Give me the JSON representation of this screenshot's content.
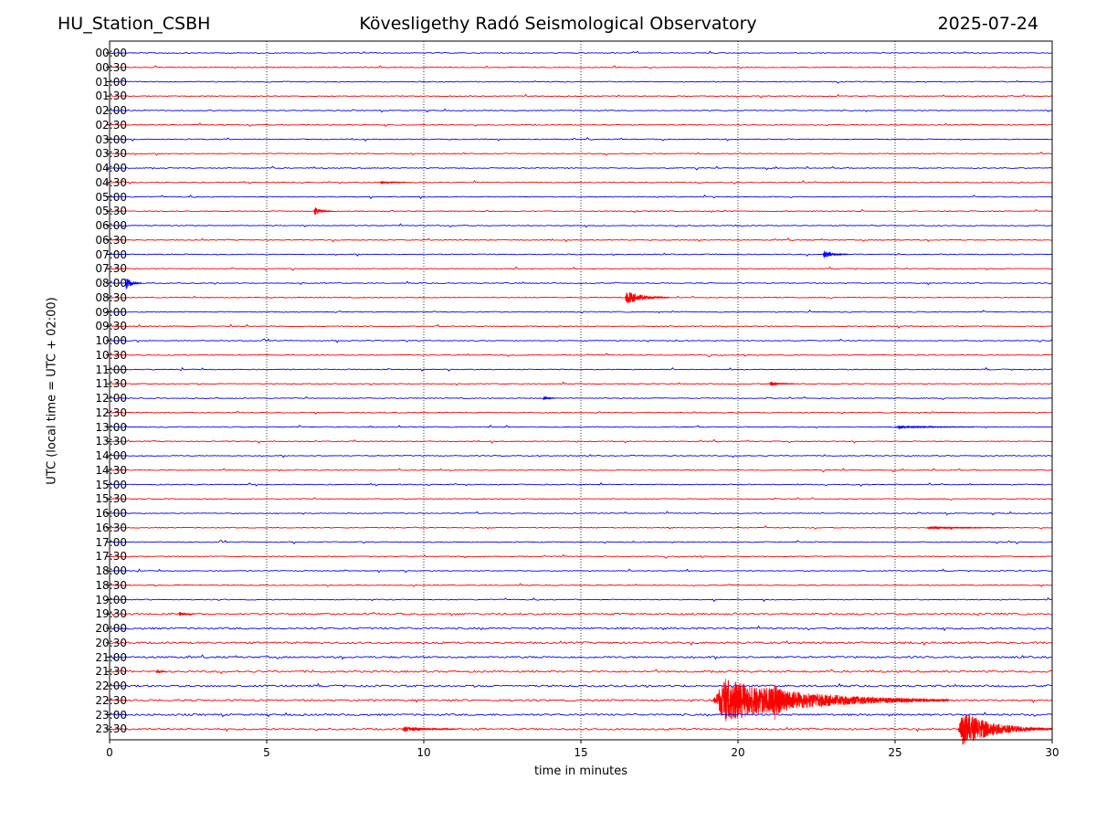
{
  "header": {
    "station": "HU_Station_CSBH",
    "title": "Kövesligethy Radó Seismological Observatory",
    "date": "2025-07-24"
  },
  "chart_data": {
    "type": "line",
    "subtype": "helicorder",
    "title": "Kövesligethy Radó Seismological Observatory",
    "xlabel": "time in minutes",
    "ylabel": "UTC (local time = UTC + 02:00)",
    "xlim": [
      0,
      30
    ],
    "xticks": [
      0,
      5,
      10,
      15,
      20,
      25,
      30
    ],
    "xtick_labels": [
      "0",
      "5",
      "10",
      "15",
      "20",
      "25",
      "30"
    ],
    "grid": "vertical dotted lines at 5-minute intervals",
    "row_labels": [
      "00:00",
      "00:30",
      "01:00",
      "01:30",
      "02:00",
      "02:30",
      "03:00",
      "03:30",
      "04:00",
      "04:30",
      "05:00",
      "05:30",
      "06:00",
      "06:30",
      "07:00",
      "07:30",
      "08:00",
      "08:30",
      "09:00",
      "09:30",
      "10:00",
      "10:30",
      "11:00",
      "11:30",
      "12:00",
      "12:30",
      "13:00",
      "13:30",
      "14:00",
      "14:30",
      "15:00",
      "15:30",
      "16:00",
      "16:30",
      "17:00",
      "17:30",
      "18:00",
      "18:30",
      "19:00",
      "19:30",
      "20:00",
      "20:30",
      "21:00",
      "21:30",
      "22:00",
      "22:30",
      "23:00",
      "23:30"
    ],
    "series_colors": [
      "#0000ff",
      "#ff0000"
    ],
    "events": [
      {
        "row": "04:30",
        "start_min": 8.6,
        "duration_min": 1.0,
        "amplitude": 2
      },
      {
        "row": "05:30",
        "start_min": 6.5,
        "duration_min": 0.6,
        "amplitude": 6
      },
      {
        "row": "07:00",
        "start_min": 22.7,
        "duration_min": 0.8,
        "amplitude": 5
      },
      {
        "row": "08:00",
        "start_min": 0.5,
        "duration_min": 0.5,
        "amplitude": 8
      },
      {
        "row": "08:30",
        "start_min": 16.4,
        "duration_min": 1.4,
        "amplitude": 9
      },
      {
        "row": "11:30",
        "start_min": 21.0,
        "duration_min": 0.8,
        "amplitude": 3
      },
      {
        "row": "12:00",
        "start_min": 13.8,
        "duration_min": 0.4,
        "amplitude": 3
      },
      {
        "row": "13:00",
        "start_min": 25.0,
        "duration_min": 2.5,
        "amplitude": 2
      },
      {
        "row": "16:30",
        "start_min": 26.0,
        "duration_min": 2.5,
        "amplitude": 2
      },
      {
        "row": "19:30",
        "start_min": 2.2,
        "duration_min": 0.5,
        "amplitude": 3
      },
      {
        "row": "21:30",
        "start_min": 1.5,
        "duration_min": 0.3,
        "amplitude": 4
      },
      {
        "row": "22:30",
        "start_min": 19.2,
        "duration_min": 7.5,
        "amplitude": 28
      },
      {
        "row": "23:30",
        "start_min": 9.3,
        "duration_min": 1.8,
        "amplitude": 4
      },
      {
        "row": "23:30",
        "start_min": 27.0,
        "duration_min": 3.0,
        "amplitude": 22
      }
    ]
  }
}
